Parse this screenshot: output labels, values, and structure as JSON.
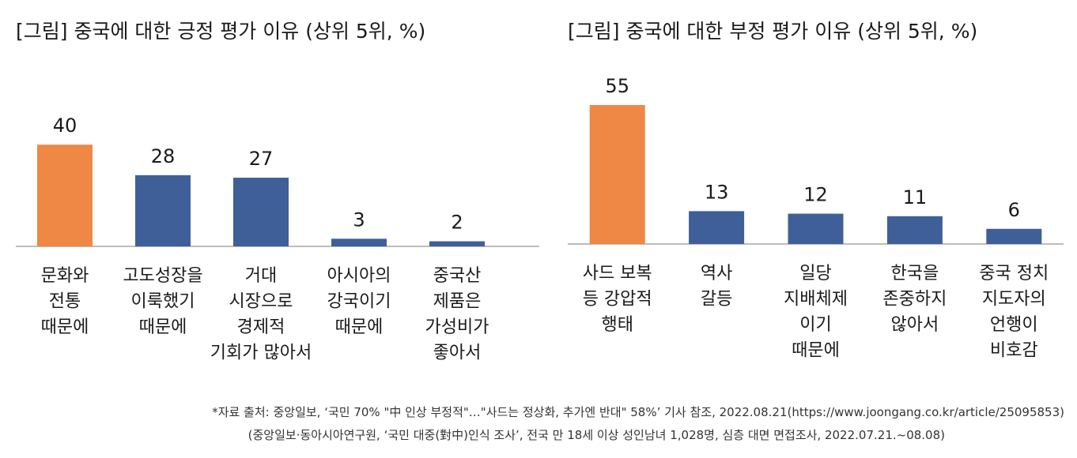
{
  "colors": {
    "highlight": "#ef8745",
    "default": "#3f5f98",
    "axis": "#a6a6a6"
  },
  "chart_data": [
    {
      "type": "bar",
      "title": "[그림] 중국에 대한 긍정 평가 이유 (상위 5위, %)",
      "categories": [
        [
          "문화와",
          "전통",
          "때문에"
        ],
        [
          "고도성장을",
          "이룩했기",
          "때문에"
        ],
        [
          "거대",
          "시장으로",
          "경제적",
          "기회가 많아서"
        ],
        [
          "아시아의",
          "강국이기",
          "때문에"
        ],
        [
          "중국산",
          "제품은",
          "가성비가",
          "좋아서"
        ]
      ],
      "values": [
        40,
        28,
        27,
        3,
        2
      ],
      "highlight_index": 0
    },
    {
      "type": "bar",
      "title": "[그림] 중국에 대한 부정 평가 이유 (상위 5위, %)",
      "categories": [
        [
          "사드 보복",
          "등 강압적",
          "행태"
        ],
        [
          "역사",
          "갈등"
        ],
        [
          "일당",
          "지배체제",
          "이기",
          "때문에"
        ],
        [
          "한국을",
          "존중하지",
          "않아서"
        ],
        [
          "중국 정치",
          "지도자의",
          "언행이",
          "비호감"
        ]
      ],
      "values": [
        55,
        13,
        12,
        11,
        6
      ],
      "highlight_index": 0
    }
  ],
  "source": {
    "line1": "*자료 출처: 중앙일보, ‘국민 70% \"中 인상 부정적\"…\"사드는 정상화, 추가엔 반대\" 58%’ 기사 참조, 2022.08.21(https://www.joongang.co.kr/article/25095853)",
    "line2": "(중앙일보·동아시아연구원, ‘국민 대중(對中)인식 조사’, 전국 만 18세 이상 성인남녀 1,028명, 심층 대면 면접조사, 2022.07.21.~08.08)"
  }
}
